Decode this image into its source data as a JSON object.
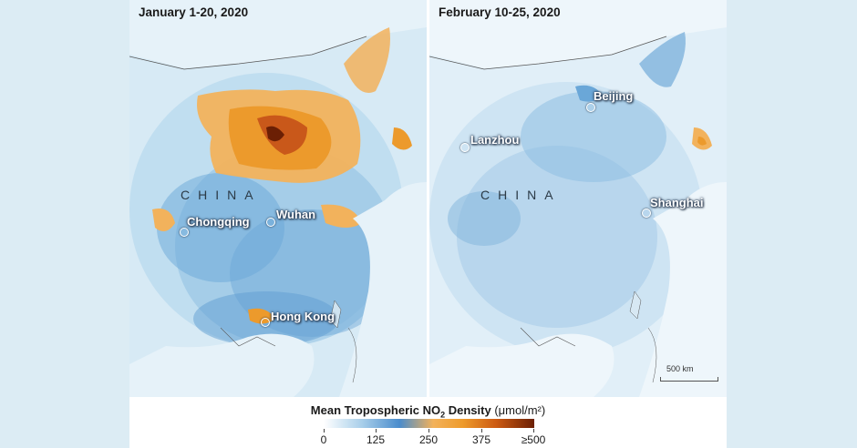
{
  "panels": {
    "left": {
      "title": "January 1-20, 2020",
      "country": "CHINA",
      "cities": {
        "chongqing": "Chongqing",
        "wuhan": "Wuhan",
        "hongkong": "Hong Kong"
      }
    },
    "right": {
      "title": "February 10-25, 2020",
      "country": "CHINA",
      "cities": {
        "beijing": "Beijing",
        "lanzhou": "Lanzhou",
        "shanghai": "Shanghai"
      },
      "scale": "500 km"
    }
  },
  "legend": {
    "title_main": "Mean Tropospheric NO",
    "title_sub": "2",
    "title_rest": " Density",
    "unit": "(μmol/m²)",
    "ticks": [
      "0",
      "125",
      "250",
      "375",
      "≥500"
    ]
  },
  "colors": {
    "low": "#ffffff",
    "light_blue": "#a9cfea",
    "blue": "#4a8ccc",
    "orange": "#ee9b2c",
    "dark_red": "#6b1f04"
  }
}
